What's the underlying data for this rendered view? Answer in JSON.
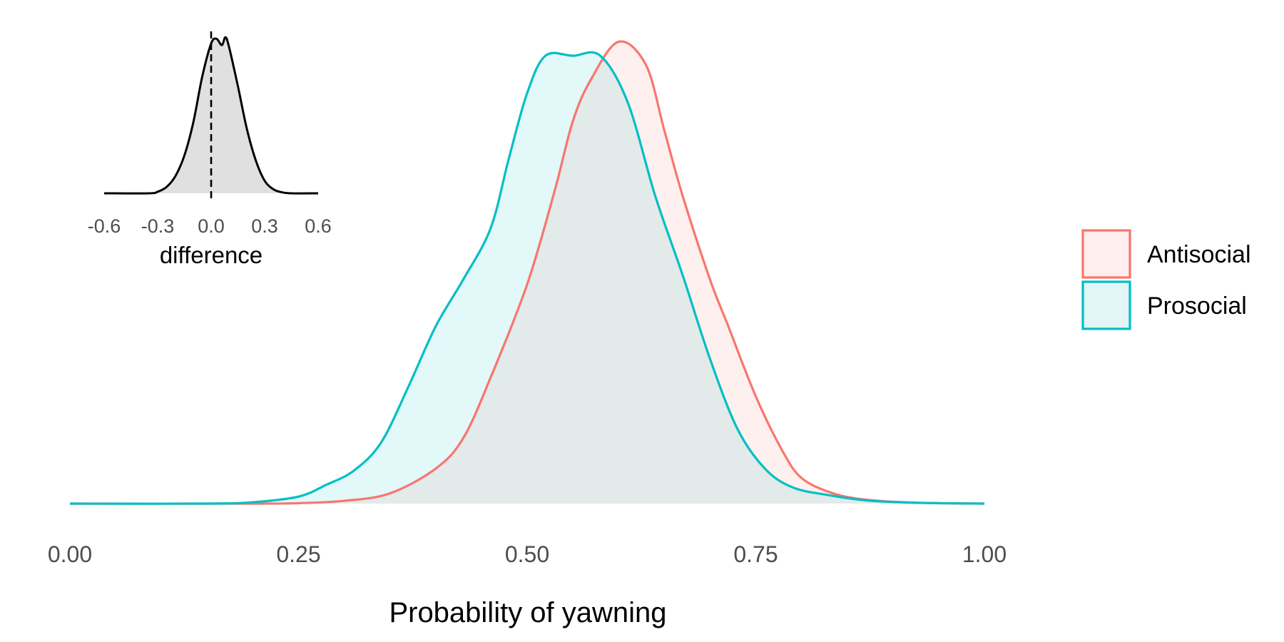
{
  "chart_data": [
    {
      "type": "area",
      "role": "main density plot",
      "title": "",
      "xlabel": "Probability of yawning",
      "ylabel": "",
      "xlim": [
        0,
        1
      ],
      "x_ticks": [
        0,
        0.25,
        0.5,
        0.75,
        1
      ],
      "x_tick_labels": [
        "0.00",
        "0.25",
        "0.50",
        "0.75",
        "1.00"
      ],
      "y_axis_shown": false,
      "grid": false,
      "legend_position": "right",
      "series": [
        {
          "name": "Antisocial",
          "color": "#F8766D",
          "fill": "#FFEEEE",
          "points": [
            [
              0.0,
              0
            ],
            [
              0.2,
              0
            ],
            [
              0.25,
              0.001
            ],
            [
              0.3,
              0.006
            ],
            [
              0.35,
              0.022
            ],
            [
              0.4,
              0.075
            ],
            [
              0.43,
              0.14
            ],
            [
              0.46,
              0.27
            ],
            [
              0.5,
              0.47
            ],
            [
              0.53,
              0.67
            ],
            [
              0.55,
              0.82
            ],
            [
              0.57,
              0.91
            ],
            [
              0.6,
              0.99
            ],
            [
              0.63,
              0.94
            ],
            [
              0.65,
              0.8
            ],
            [
              0.67,
              0.66
            ],
            [
              0.7,
              0.48
            ],
            [
              0.72,
              0.38
            ],
            [
              0.75,
              0.23
            ],
            [
              0.78,
              0.11
            ],
            [
              0.8,
              0.055
            ],
            [
              0.83,
              0.025
            ],
            [
              0.86,
              0.011
            ],
            [
              0.9,
              0.004
            ],
            [
              0.95,
              0.001
            ],
            [
              1.0,
              0
            ]
          ]
        },
        {
          "name": "Prosocial",
          "color": "#00BFC4",
          "fill": "#E3F5F7",
          "points": [
            [
              0.0,
              0
            ],
            [
              0.15,
              0
            ],
            [
              0.2,
              0.003
            ],
            [
              0.25,
              0.015
            ],
            [
              0.28,
              0.04
            ],
            [
              0.31,
              0.07
            ],
            [
              0.34,
              0.13
            ],
            [
              0.37,
              0.25
            ],
            [
              0.4,
              0.38
            ],
            [
              0.43,
              0.48
            ],
            [
              0.46,
              0.59
            ],
            [
              0.48,
              0.74
            ],
            [
              0.5,
              0.88
            ],
            [
              0.52,
              0.96
            ],
            [
              0.55,
              0.96
            ],
            [
              0.58,
              0.96
            ],
            [
              0.61,
              0.86
            ],
            [
              0.64,
              0.66
            ],
            [
              0.67,
              0.49
            ],
            [
              0.7,
              0.31
            ],
            [
              0.73,
              0.16
            ],
            [
              0.76,
              0.075
            ],
            [
              0.79,
              0.035
            ],
            [
              0.83,
              0.018
            ],
            [
              0.87,
              0.007
            ],
            [
              0.92,
              0.002
            ],
            [
              1.0,
              0
            ]
          ]
        }
      ]
    },
    {
      "type": "area",
      "role": "inset density plot",
      "title": "",
      "xlabel": "difference",
      "ylabel": "",
      "xlim": [
        -0.6,
        0.6
      ],
      "x_ticks": [
        -0.6,
        -0.3,
        0,
        0.3,
        0.6
      ],
      "x_tick_labels": [
        "-0.6",
        "-0.3",
        "0.0",
        "0.3",
        "0.6"
      ],
      "reference_line_x": 0,
      "reference_line_style": "dashed",
      "y_axis_shown": false,
      "grid": false,
      "series": [
        {
          "color": "#000000",
          "fill": "#E0E0E0",
          "points": [
            [
              -0.6,
              0
            ],
            [
              -0.35,
              0
            ],
            [
              -0.3,
              0.01
            ],
            [
              -0.25,
              0.04
            ],
            [
              -0.2,
              0.11
            ],
            [
              -0.15,
              0.24
            ],
            [
              -0.1,
              0.45
            ],
            [
              -0.05,
              0.74
            ],
            [
              0.0,
              0.95
            ],
            [
              0.03,
              0.98
            ],
            [
              0.06,
              0.94
            ],
            [
              0.08,
              0.99
            ],
            [
              0.1,
              0.93
            ],
            [
              0.15,
              0.68
            ],
            [
              0.2,
              0.41
            ],
            [
              0.25,
              0.21
            ],
            [
              0.3,
              0.08
            ],
            [
              0.35,
              0.025
            ],
            [
              0.4,
              0.006
            ],
            [
              0.45,
              0
            ],
            [
              0.6,
              0
            ]
          ]
        }
      ]
    }
  ]
}
